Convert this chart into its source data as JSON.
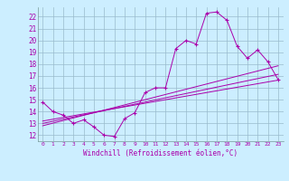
{
  "background_color": "#cceeff",
  "line_color": "#aa00aa",
  "grid_color": "#99bbcc",
  "xlabel": "Windchill (Refroidissement éolien,°C)",
  "xlabel_color": "#aa00aa",
  "xlim": [
    -0.5,
    23.5
  ],
  "ylim": [
    11.5,
    22.8
  ],
  "xticks": [
    0,
    1,
    2,
    3,
    4,
    5,
    6,
    7,
    8,
    9,
    10,
    11,
    12,
    13,
    14,
    15,
    16,
    17,
    18,
    19,
    20,
    21,
    22,
    23
  ],
  "yticks": [
    12,
    13,
    14,
    15,
    16,
    17,
    18,
    19,
    20,
    21,
    22
  ],
  "series_main": [
    14.8,
    14.0,
    13.7,
    13.0,
    13.3,
    12.7,
    12.0,
    11.9,
    13.4,
    13.9,
    15.6,
    16.0,
    16.0,
    19.3,
    20.0,
    19.7,
    22.3,
    22.4,
    21.7,
    19.5,
    18.5,
    19.2,
    18.2,
    16.7
  ],
  "series_line1": [
    13.2,
    13.35,
    13.5,
    13.65,
    13.8,
    13.95,
    14.1,
    14.25,
    14.4,
    14.55,
    14.7,
    14.85,
    15.0,
    15.15,
    15.3,
    15.45,
    15.6,
    15.75,
    15.9,
    16.05,
    16.2,
    16.35,
    16.5,
    16.65
  ],
  "series_line2": [
    13.0,
    13.18,
    13.36,
    13.54,
    13.72,
    13.9,
    14.08,
    14.26,
    14.44,
    14.62,
    14.8,
    14.98,
    15.16,
    15.34,
    15.52,
    15.7,
    15.88,
    16.06,
    16.24,
    16.42,
    16.6,
    16.78,
    16.96,
    17.14
  ],
  "series_line3": [
    12.8,
    13.02,
    13.24,
    13.46,
    13.68,
    13.9,
    14.12,
    14.34,
    14.56,
    14.78,
    15.0,
    15.22,
    15.44,
    15.66,
    15.88,
    16.1,
    16.32,
    16.54,
    16.76,
    16.98,
    17.2,
    17.42,
    17.64,
    17.86
  ]
}
